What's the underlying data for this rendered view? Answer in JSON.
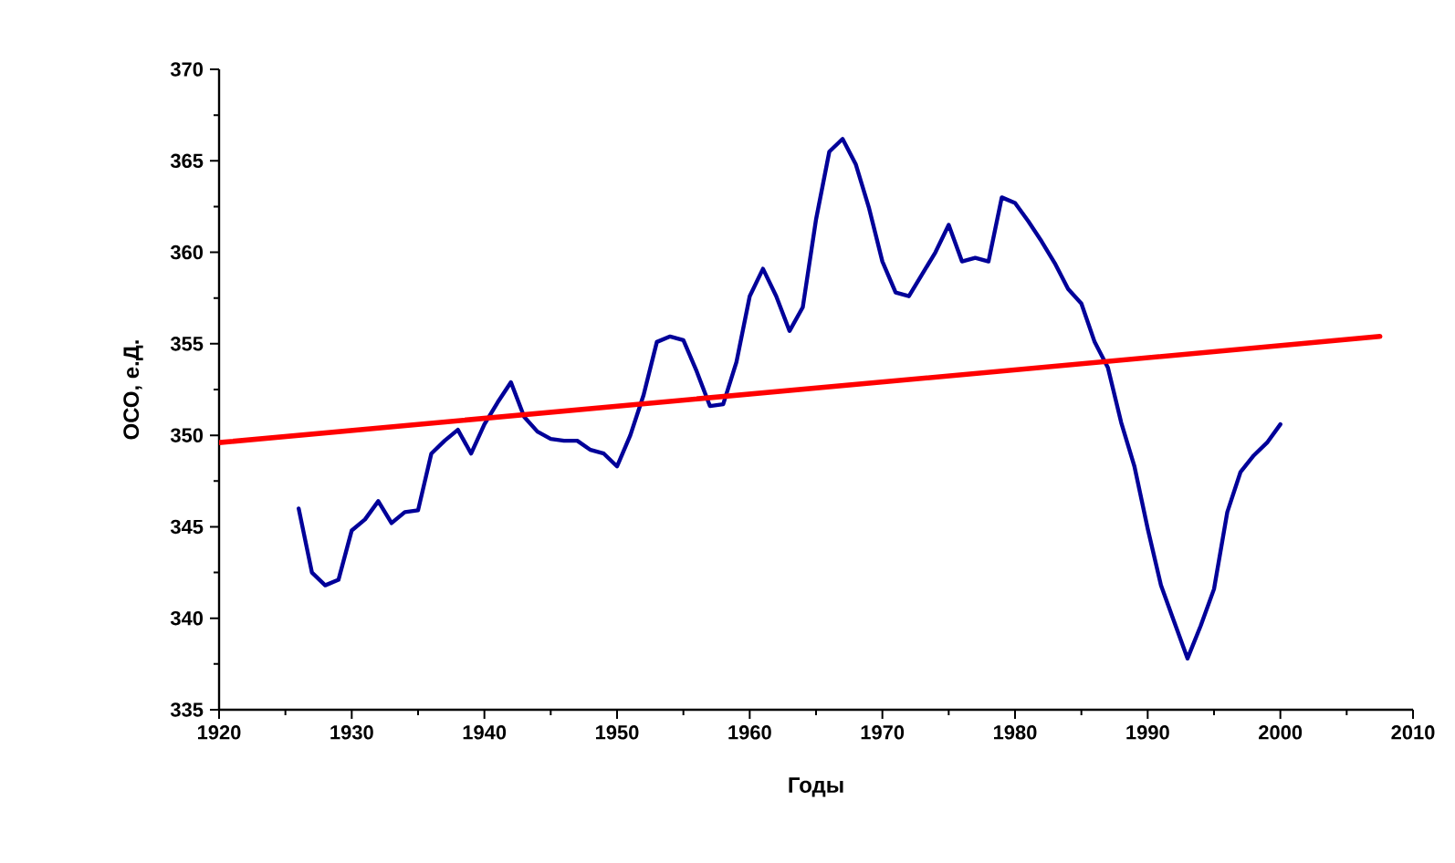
{
  "chart_data": {
    "type": "line",
    "xlabel": "Годы",
    "ylabel": "ОСО, е.Д.",
    "xlim": [
      1920,
      2010
    ],
    "ylim": [
      335,
      370
    ],
    "xticks": [
      1920,
      1930,
      1940,
      1950,
      1960,
      1970,
      1980,
      1990,
      2000,
      2010
    ],
    "yticks": [
      335,
      340,
      345,
      350,
      355,
      360,
      365,
      370
    ],
    "grid": false,
    "marker": "none",
    "line_style": "solid",
    "series": [
      {
        "color": "#000099",
        "x": [
          1926,
          1927,
          1928,
          1929,
          1930,
          1931,
          1932,
          1933,
          1934,
          1935,
          1936,
          1937,
          1938,
          1939,
          1940,
          1941,
          1942,
          1943,
          1944,
          1945,
          1946,
          1947,
          1948,
          1949,
          1950,
          1951,
          1952,
          1953,
          1954,
          1955,
          1956,
          1957,
          1958,
          1959,
          1960,
          1961,
          1962,
          1963,
          1964,
          1965,
          1966,
          1967,
          1968,
          1969,
          1970,
          1971,
          1972,
          1973,
          1974,
          1975,
          1976,
          1977,
          1978,
          1979,
          1980,
          1981,
          1982,
          1983,
          1984,
          1985,
          1986,
          1987,
          1988,
          1989,
          1990,
          1991,
          1992,
          1993,
          1994,
          1995,
          1996,
          1997,
          1998,
          1999,
          2000
        ],
        "values": [
          346.0,
          342.5,
          341.8,
          342.1,
          344.8,
          345.4,
          346.4,
          345.2,
          345.8,
          345.9,
          349.0,
          349.7,
          350.3,
          349.0,
          350.6,
          351.8,
          352.9,
          351.0,
          350.2,
          349.8,
          349.7,
          349.7,
          349.2,
          349.0,
          348.3,
          350.0,
          352.2,
          355.1,
          355.4,
          355.2,
          353.5,
          351.6,
          351.7,
          354.0,
          357.6,
          359.1,
          357.6,
          355.7,
          357.0,
          361.8,
          365.5,
          366.2,
          364.8,
          362.4,
          359.5,
          357.8,
          357.6,
          358.8,
          360.0,
          361.5,
          359.5,
          359.7,
          359.5,
          363.0,
          362.7,
          361.7,
          360.6,
          359.4,
          358.0,
          357.2,
          355.1,
          353.7,
          350.7,
          348.3,
          344.9,
          341.8,
          339.8,
          337.8,
          339.6,
          341.6,
          345.8,
          348.0,
          348.9,
          349.6,
          350.6
        ]
      },
      {
        "color": "#ff0000",
        "x": [
          1920,
          2007.5
        ],
        "values": [
          349.6,
          355.4
        ]
      }
    ]
  }
}
